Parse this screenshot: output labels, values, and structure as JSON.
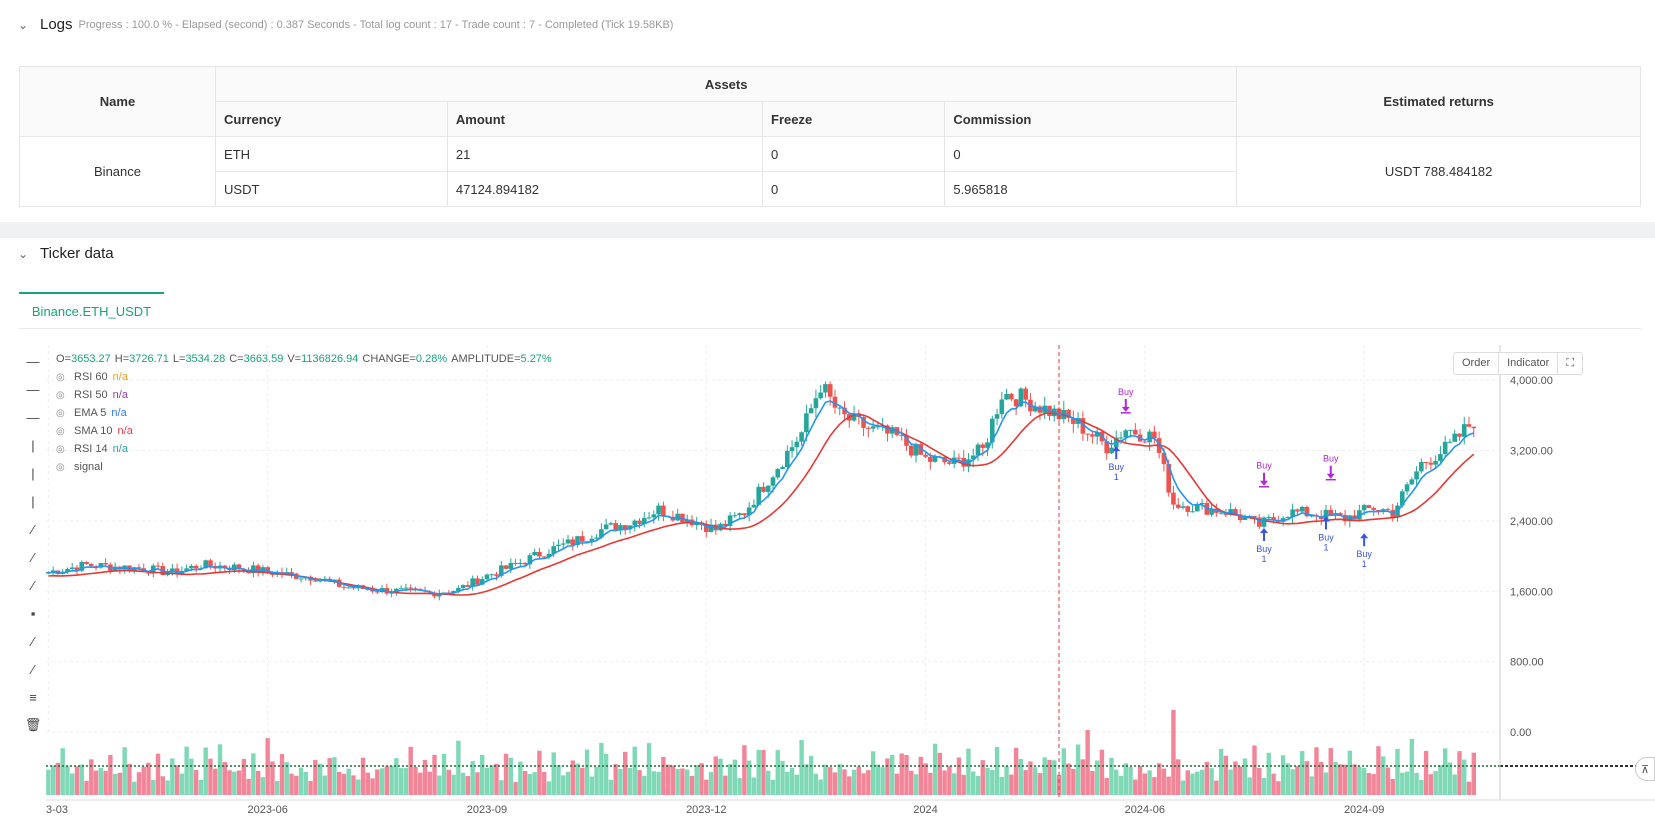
{
  "logs": {
    "title": "Logs",
    "summary": "Progress : 100.0 % - Elapsed (second) : 0.387  Seconds - Total log count : 17 - Trade count : 7 - Completed (Tick 19.58KB)"
  },
  "assets_table": {
    "headers": {
      "name": "Name",
      "assets": "Assets",
      "estimated": "Estimated returns",
      "currency": "Currency",
      "amount": "Amount",
      "freeze": "Freeze",
      "commission": "Commission"
    },
    "exchange": "Binance",
    "rows": [
      {
        "currency": "ETH",
        "amount": "21",
        "freeze": "0",
        "commission": "0"
      },
      {
        "currency": "USDT",
        "amount": "47124.894182",
        "freeze": "0",
        "commission": "5.965818"
      }
    ],
    "estimated_returns": "USDT 788.484182"
  },
  "ticker": {
    "title": "Ticker data",
    "tab_label": "Binance.ETH_USDT"
  },
  "legend": {
    "ohlc": [
      {
        "k": "O=",
        "v": "3653.27"
      },
      {
        "k": "H=",
        "v": "3726.71"
      },
      {
        "k": "L=",
        "v": "3534.28"
      },
      {
        "k": "C=",
        "v": "3663.59"
      },
      {
        "k": "V=",
        "v": "1136826.94"
      },
      {
        "k": "CHANGE=",
        "v": "0.28%"
      },
      {
        "k": "AMPLITUDE=",
        "v": "5.27%"
      }
    ],
    "indicators": [
      {
        "name": "RSI 60",
        "value": "n/a",
        "color": "#f0a020"
      },
      {
        "name": "RSI 50",
        "value": "n/a",
        "color": "#8e44ad"
      },
      {
        "name": "EMA 5",
        "value": "n/a",
        "color": "#2979ff"
      },
      {
        "name": "SMA 10",
        "value": "n/a",
        "color": "#e53950"
      },
      {
        "name": "RSI 14",
        "value": "n/a",
        "color": "#26a69a"
      },
      {
        "name": "signal",
        "value": "",
        "color": "#888888"
      }
    ]
  },
  "chart_buttons": {
    "order": "Order",
    "indicator": "Indicator"
  },
  "chart_data": {
    "type": "candlestick",
    "y_ticks": [
      "4,000.00",
      "3,200.00",
      "2,400.00",
      "1,600.00",
      "800.00",
      "0.00"
    ],
    "y_tick_values": [
      4000,
      3200,
      2400,
      1600,
      800,
      0
    ],
    "x_ticks": [
      "3-03",
      "2023-06",
      "2023-09",
      "2023-12",
      "2024",
      "2024-06",
      "2024-09"
    ],
    "ylim": [
      0,
      4400
    ],
    "price_anchors": [
      [
        0,
        1820
      ],
      [
        8,
        1900
      ],
      [
        14,
        1880
      ],
      [
        20,
        1860
      ],
      [
        26,
        1810
      ],
      [
        32,
        1900
      ],
      [
        38,
        1880
      ],
      [
        44,
        1840
      ],
      [
        50,
        1790
      ],
      [
        56,
        1760
      ],
      [
        62,
        1650
      ],
      [
        68,
        1620
      ],
      [
        74,
        1600
      ],
      [
        80,
        1580
      ],
      [
        86,
        1620
      ],
      [
        92,
        1780
      ],
      [
        98,
        1900
      ],
      [
        104,
        2050
      ],
      [
        110,
        2160
      ],
      [
        116,
        2300
      ],
      [
        122,
        2380
      ],
      [
        128,
        2530
      ],
      [
        134,
        2430
      ],
      [
        140,
        2300
      ],
      [
        146,
        2500
      ],
      [
        152,
        2950
      ],
      [
        158,
        3400
      ],
      [
        162,
        3950
      ],
      [
        166,
        3600
      ],
      [
        172,
        3450
      ],
      [
        178,
        3350
      ],
      [
        184,
        3100
      ],
      [
        190,
        3050
      ],
      [
        196,
        3200
      ],
      [
        200,
        3850
      ],
      [
        204,
        3800
      ],
      [
        210,
        3650
      ],
      [
        216,
        3500
      ],
      [
        222,
        3250
      ],
      [
        226,
        3450
      ],
      [
        232,
        3350
      ],
      [
        236,
        2600
      ],
      [
        242,
        2550
      ],
      [
        248,
        2500
      ],
      [
        254,
        2350
      ],
      [
        260,
        2500
      ],
      [
        266,
        2480
      ],
      [
        272,
        2430
      ],
      [
        278,
        2550
      ],
      [
        282,
        2500
      ],
      [
        288,
        3050
      ],
      [
        294,
        3250
      ],
      [
        300,
        3600
      ]
    ],
    "volume_pattern": [
      30,
      35,
      25,
      40,
      28,
      22,
      45,
      33,
      20,
      38
    ],
    "volume_spikes": [
      [
        150,
        45
      ],
      [
        158,
        55
      ],
      [
        180,
        40
      ],
      [
        218,
        65
      ],
      [
        236,
        85
      ]
    ],
    "signals": [
      {
        "kind": "buy",
        "label": "Buy",
        "qty": "1",
        "index": 224,
        "price": 3250
      },
      {
        "kind": "sell",
        "label": "Buy",
        "index": 226,
        "price": 3640
      },
      {
        "kind": "buy",
        "label": "Buy",
        "qty": "1",
        "index": 255,
        "price": 2320
      },
      {
        "kind": "sell",
        "label": "Buy",
        "index": 255,
        "price": 2800
      },
      {
        "kind": "buy",
        "label": "Buy",
        "qty": "1",
        "index": 268,
        "price": 2450
      },
      {
        "kind": "sell",
        "label": "Buy",
        "index": 269,
        "price": 2880
      },
      {
        "kind": "buy",
        "label": "Buy",
        "qty": "1",
        "index": 276,
        "price": 2260
      }
    ],
    "vertical_marker_index": 212,
    "colors": {
      "up": "#26a69a",
      "down": "#ef5350",
      "ema": "#2196f3",
      "sma": "#e53935",
      "buy": "#3a54e6",
      "sell": "#b026d9"
    }
  }
}
